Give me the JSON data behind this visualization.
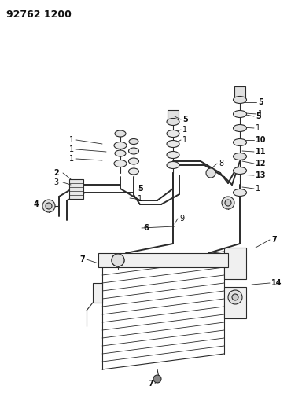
{
  "title": "92762 1200",
  "bg_color": "#ffffff",
  "line_color": "#2a2a2a",
  "label_color": "#111111",
  "fig_width": 3.84,
  "fig_height": 5.33,
  "dpi": 100
}
